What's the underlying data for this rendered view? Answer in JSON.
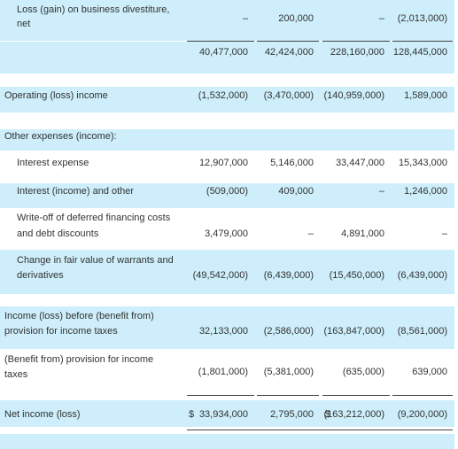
{
  "rows": {
    "divestiture": {
      "label1": "Loss (gain) on business divestiture,",
      "label2": "net",
      "v1": "–",
      "v2": "200,000",
      "v3": "–",
      "v4": "(2,013,000)"
    },
    "subtotal": {
      "v1": "40,477,000",
      "v2": "42,424,000",
      "v3": "228,160,000",
      "v4": "128,445,000"
    },
    "operating": {
      "label": "Operating (loss) income",
      "v1": "(1,532,000)",
      "v2": "(3,470,000)",
      "v3": "(140,959,000)",
      "v4": "1,589,000"
    },
    "other_header": {
      "label": "Other expenses (income):"
    },
    "interest_expense": {
      "label": "Interest expense",
      "v1": "12,907,000",
      "v2": "5,146,000",
      "v3": "33,447,000",
      "v4": "15,343,000"
    },
    "interest_income": {
      "label": "Interest (income) and other",
      "v1": "(509,000)",
      "v2": "409,000",
      "v3": "–",
      "v4": "1,246,000"
    },
    "writeoff": {
      "label1": "Write-off of deferred financing costs",
      "label2": "and debt discounts",
      "v1": "3,479,000",
      "v2": "–",
      "v3": "4,891,000",
      "v4": "–"
    },
    "fair_value": {
      "label1": "Change in fair value of warrants and",
      "label2": "derivatives",
      "v1": "(49,542,000)",
      "v2": "(6,439,000)",
      "v3": "(15,450,000)",
      "v4": "(6,439,000)"
    },
    "pretax": {
      "label1": "Income (loss) before (benefit from)",
      "label2": "provision for income taxes",
      "v1": "32,133,000",
      "v2": "(2,586,000)",
      "v3": "(163,847,000)",
      "v4": "(8,561,000)"
    },
    "tax": {
      "label1": "(Benefit from) provision for income",
      "label2": "taxes",
      "v1": "(1,801,000)",
      "v2": "(5,381,000)",
      "v3": "(635,000)",
      "v4": "639,000"
    },
    "net": {
      "label": "Net income (loss)",
      "dollar1": "$",
      "v1": "33,934,000",
      "v2": "2,795,000",
      "dollar3": "$",
      "v3": "(163,212,000)",
      "v4": "(9,200,000)"
    }
  }
}
